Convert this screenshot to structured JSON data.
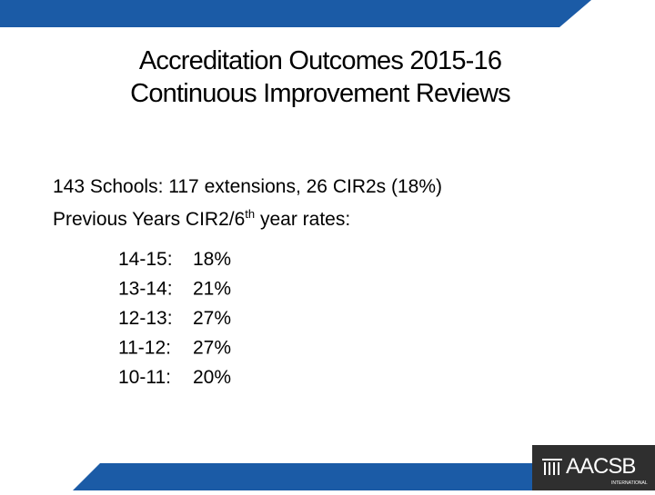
{
  "header": {
    "title_lines": [
      "Accreditation Outcomes 2015-16",
      "Continuous Improvement Reviews"
    ]
  },
  "body": {
    "summary": "143 Schools:  117 extensions, 26 CIR2s (18%)",
    "previous": {
      "before": "Previous Years CIR2/6",
      "sup": "th",
      "after": " year rates:"
    },
    "rates": [
      [
        "14-15:",
        "18%"
      ],
      [
        "13-14:",
        "21%"
      ],
      [
        "12-13:",
        "27%"
      ],
      [
        "11-12:",
        "27%"
      ],
      [
        "10-11:",
        "20%"
      ]
    ]
  },
  "logo": {
    "name": "AACSB",
    "sub": "INTERNATIONAL"
  }
}
